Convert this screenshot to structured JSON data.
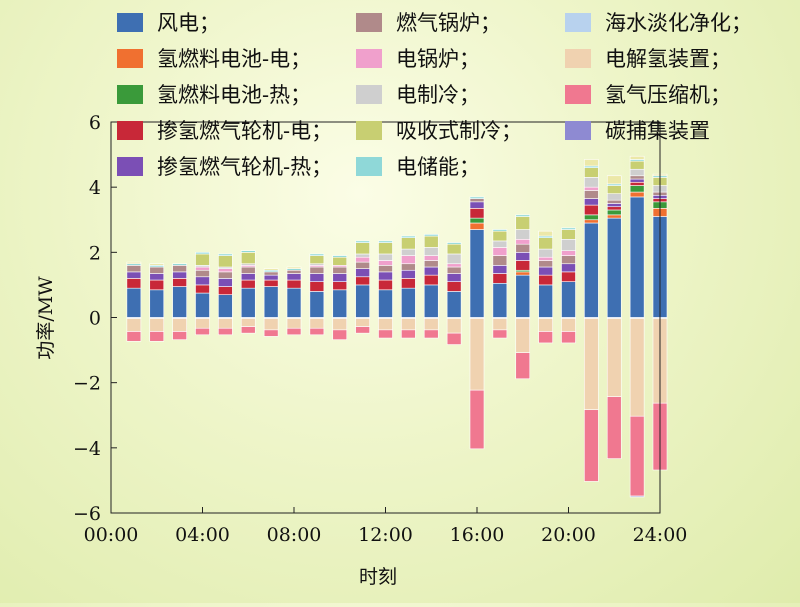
{
  "chart_data": {
    "type": "bar",
    "stacked": true,
    "xlabel": "时刻",
    "ylabel": "功率/MW",
    "ylim": [
      -6,
      6
    ],
    "yticks": [
      6,
      4,
      2,
      0,
      -2,
      -4,
      -6
    ],
    "ytick_labels": [
      "6",
      "4",
      "2",
      "0",
      "−2",
      "−4",
      "−6"
    ],
    "xlim": [
      0,
      24
    ],
    "xticks": [
      0,
      4,
      8,
      12,
      16,
      20,
      24
    ],
    "xtick_labels": [
      "00:00",
      "04:00",
      "08:00",
      "12:00",
      "16:00",
      "20:00",
      "24:00"
    ],
    "legend_position": "top",
    "categories": [
      "01:00",
      "02:00",
      "03:00",
      "04:00",
      "05:00",
      "06:00",
      "07:00",
      "08:00",
      "09:00",
      "10:00",
      "11:00",
      "12:00",
      "13:00",
      "14:00",
      "15:00",
      "16:00",
      "17:00",
      "18:00",
      "19:00",
      "20:00",
      "21:00",
      "22:00",
      "23:00",
      "24:00"
    ],
    "series": [
      {
        "name": "风电；",
        "color": "#3e6fb2",
        "values": [
          0.9,
          0.85,
          0.95,
          0.75,
          0.7,
          0.9,
          0.95,
          0.9,
          0.8,
          0.85,
          1.0,
          0.85,
          0.9,
          1.0,
          0.8,
          2.7,
          1.05,
          1.3,
          1.0,
          1.1,
          2.9,
          3.05,
          3.7,
          3.1
        ]
      },
      {
        "name": "氢燃料电池-电；",
        "color": "#f07030",
        "values": [
          0,
          0,
          0,
          0,
          0,
          0,
          0,
          0,
          0,
          0,
          0,
          0,
          0,
          0,
          0,
          0.2,
          0,
          0.1,
          0,
          0,
          0.1,
          0.1,
          0.15,
          0.25
        ]
      },
      {
        "name": "氢燃料电池-热；",
        "color": "#3a9a3a",
        "values": [
          0,
          0,
          0,
          0,
          0,
          0,
          0,
          0,
          0,
          0,
          0,
          0,
          0,
          0,
          0,
          0.15,
          0,
          0.05,
          0,
          0,
          0.15,
          0.15,
          0.2,
          0.2
        ]
      },
      {
        "name": "掺氢燃气轮机-电；",
        "color": "#c82838",
        "values": [
          0.3,
          0.3,
          0.25,
          0.25,
          0.25,
          0.25,
          0.2,
          0.25,
          0.3,
          0.25,
          0.25,
          0.3,
          0.3,
          0.3,
          0.3,
          0.3,
          0.3,
          0.3,
          0.3,
          0.3,
          0.3,
          0.1,
          0.1,
          0.1
        ]
      },
      {
        "name": "掺氢燃气轮机-热；",
        "color": "#7b4fb5",
        "values": [
          0.2,
          0.2,
          0.2,
          0.25,
          0.25,
          0.2,
          0.15,
          0.2,
          0.25,
          0.25,
          0.25,
          0.25,
          0.25,
          0.25,
          0.25,
          0.2,
          0.25,
          0.25,
          0.25,
          0.25,
          0.2,
          0.1,
          0.1,
          0.1
        ]
      },
      {
        "name": "燃气锅炉；",
        "color": "#b08a8a",
        "values": [
          0.2,
          0.2,
          0.2,
          0.2,
          0.2,
          0.2,
          0.1,
          0.1,
          0.2,
          0.2,
          0.2,
          0.2,
          0.2,
          0.2,
          0.2,
          0.1,
          0.3,
          0.25,
          0.2,
          0.25,
          0.25,
          0.1,
          0.1,
          0.1
        ]
      },
      {
        "name": "电锅炉；",
        "color": "#f0a0cc",
        "values": [
          0,
          0,
          0,
          0.1,
          0.1,
          0.05,
          0,
          0,
          0.05,
          0.05,
          0.15,
          0.15,
          0.25,
          0.15,
          0.1,
          0,
          0.25,
          0.15,
          0.1,
          0.15,
          0.1,
          0,
          0,
          0
        ]
      },
      {
        "name": "电制冷；",
        "color": "#cfcfcf",
        "values": [
          0,
          0,
          0,
          0.05,
          0.05,
          0.05,
          0,
          0,
          0.05,
          0,
          0.1,
          0.2,
          0.2,
          0.25,
          0.3,
          0,
          0.2,
          0.3,
          0.25,
          0.35,
          0.3,
          0.2,
          0.2,
          0.2
        ]
      },
      {
        "name": "吸收式制冷；",
        "color": "#c8cf72",
        "values": [
          0,
          0,
          0,
          0.35,
          0.35,
          0.35,
          0,
          0,
          0.25,
          0.25,
          0.35,
          0.35,
          0.35,
          0.35,
          0.3,
          0,
          0.3,
          0.4,
          0.35,
          0.3,
          0.3,
          0.25,
          0.25,
          0.25
        ]
      },
      {
        "name": "电储能；",
        "color": "#8fd8d8",
        "values": [
          0.05,
          0.05,
          0.05,
          0.05,
          0.05,
          0.05,
          0.05,
          0.05,
          0.05,
          0.05,
          0.05,
          0.05,
          0.05,
          0.05,
          0.05,
          0.05,
          0.05,
          0.05,
          0.05,
          0.05,
          0.05,
          0.05,
          0.05,
          0.05
        ]
      },
      {
        "name": "海水淡化净化；",
        "color": "#b8d2ee",
        "values": [
          -0.03,
          -0.03,
          -0.03,
          -0.03,
          -0.03,
          -0.03,
          -0.03,
          -0.03,
          -0.03,
          -0.03,
          -0.03,
          -0.03,
          -0.03,
          -0.03,
          -0.03,
          -0.03,
          -0.03,
          -0.03,
          -0.03,
          -0.03,
          -0.03,
          -0.03,
          -0.03,
          -0.03
        ]
      },
      {
        "name": "电解氢装置；",
        "color": "#f0d2b0",
        "values": [
          -0.4,
          -0.4,
          -0.4,
          -0.3,
          -0.3,
          -0.25,
          -0.35,
          -0.3,
          -0.3,
          -0.35,
          -0.25,
          -0.35,
          -0.35,
          -0.35,
          -0.45,
          -2.2,
          -0.35,
          -1.05,
          -0.4,
          -0.4,
          -2.8,
          -2.4,
          -3.0,
          -2.6
        ]
      },
      {
        "name": "氢气压缩机；",
        "color": "#f07890",
        "values": [
          -0.3,
          -0.3,
          -0.25,
          -0.2,
          -0.2,
          -0.2,
          -0.2,
          -0.2,
          -0.2,
          -0.3,
          -0.2,
          -0.25,
          -0.25,
          -0.25,
          -0.35,
          -1.8,
          -0.25,
          -0.8,
          -0.35,
          -0.35,
          -2.2,
          -1.9,
          -2.45,
          -2.05
        ]
      },
      {
        "name": "碳捕集装置",
        "color": "#8e8ad2",
        "values": [
          0,
          0,
          0,
          0,
          0,
          0,
          0,
          0,
          0,
          0,
          0,
          0,
          0,
          0,
          0,
          0,
          0,
          0,
          0,
          0,
          0,
          0,
          -0.03,
          0
        ]
      }
    ],
    "totals_top": [
      1.7,
      1.65,
      1.65,
      1.8,
      1.8,
      1.8,
      1.5,
      1.55,
      1.8,
      1.75,
      2.0,
      2.05,
      2.4,
      2.5,
      2.25,
      3.7,
      2.55,
      2.9,
      2.65,
      2.75,
      4.85,
      4.35,
      4.95,
      4.4
    ]
  }
}
